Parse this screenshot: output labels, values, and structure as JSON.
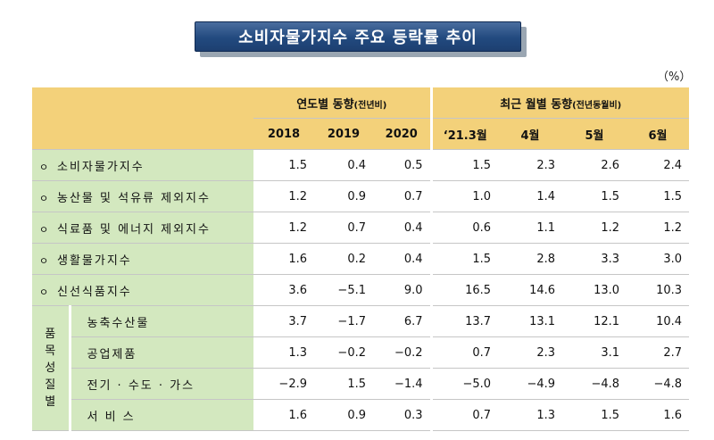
{
  "title": "소비자물가지수 주요 등락률 추이",
  "unit": "（%）",
  "header": {
    "group_annual": "연도별 동향",
    "group_annual_note": "(전년비)",
    "group_monthly": "최근 월별 동향",
    "group_monthly_note": "(전년동월비)",
    "columns": [
      "2018",
      "2019",
      "2020",
      "‘21.3월",
      "4월",
      "5월",
      "6월"
    ]
  },
  "bullet": "ㅇ",
  "rows": [
    {
      "label": "소비자물가지수",
      "values": [
        "1.5",
        "0.4",
        "0.5",
        "1.5",
        "2.3",
        "2.6",
        "2.4"
      ]
    },
    {
      "label": "농산물 및 석유류 제외지수",
      "values": [
        "1.2",
        "0.9",
        "0.7",
        "1.0",
        "1.4",
        "1.5",
        "1.5"
      ]
    },
    {
      "label": "식료품 및 에너지 제외지수",
      "values": [
        "1.2",
        "0.7",
        "0.4",
        "0.6",
        "1.1",
        "1.2",
        "1.2"
      ]
    },
    {
      "label": "생활물가지수",
      "values": [
        "1.6",
        "0.2",
        "0.4",
        "1.5",
        "2.8",
        "3.3",
        "3.0"
      ]
    },
    {
      "label": "신선식품지수",
      "values": [
        "3.6",
        "−5.1",
        "9.0",
        "16.5",
        "14.6",
        "13.0",
        "10.3"
      ]
    }
  ],
  "category_group": {
    "label_chars": [
      "품",
      "목",
      "성",
      "질",
      "별"
    ],
    "rows": [
      {
        "label": "농축수산물",
        "values": [
          "3.7",
          "−1.7",
          "6.7",
          "13.7",
          "13.1",
          "12.1",
          "10.4"
        ]
      },
      {
        "label": "공업제품",
        "values": [
          "1.3",
          "−0.2",
          "−0.2",
          "0.7",
          "2.3",
          "3.1",
          "2.7"
        ]
      },
      {
        "label": "전기 · 수도 · 가스",
        "values": [
          "−2.9",
          "1.5",
          "−1.4",
          "−5.0",
          "−4.9",
          "−4.8",
          "−4.8"
        ]
      },
      {
        "label": "서 비 스",
        "values": [
          "1.6",
          "0.9",
          "0.3",
          "0.7",
          "1.3",
          "1.5",
          "1.6"
        ]
      }
    ]
  }
}
